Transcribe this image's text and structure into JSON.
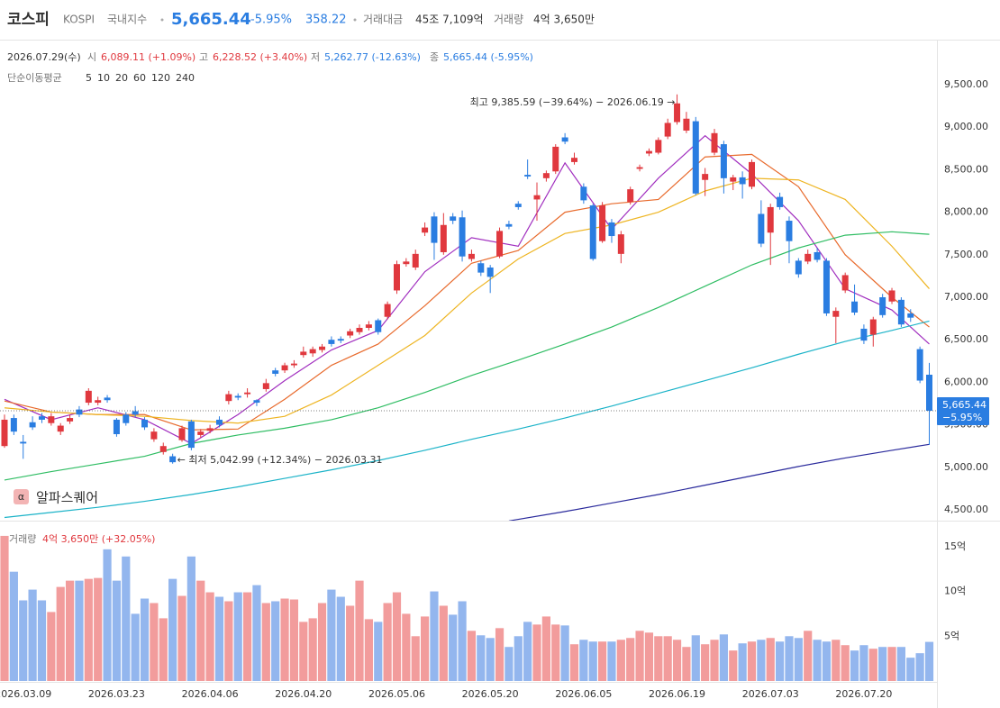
{
  "header": {
    "name": "코스피",
    "code": "KOSPI",
    "market": "국내지수",
    "price": "5,665.44",
    "change": "-5.95%",
    "change_abs": "358.22",
    "turnover_label": "거래대금",
    "turnover": "45조 7,109억",
    "volume_label": "거래량",
    "volume": "4억 3,650만"
  },
  "info": {
    "date": "2026.07.29(수)",
    "open_label": "시",
    "open": "6,089.11 (+1.09%)",
    "high_label": "고",
    "high": "6,228.52 (+3.40%)",
    "low_label": "저",
    "low": "5,262.77 (-12.63%)",
    "close_label": "종",
    "close": "5,665.44 (-5.95%)",
    "ma_label": "단순이동평균",
    "box_change": "−5.95%"
  },
  "watermark": "알파스퀘어",
  "chart_data": [
    {
      "type": "candlestick",
      "categories": [
        null,
        null,
        "2026.03.09",
        null,
        null,
        null,
        null,
        null,
        null,
        null,
        null,
        null,
        "2026.03.23",
        null,
        null,
        null,
        null,
        null,
        null,
        null,
        null,
        null,
        "2026.04.06",
        null,
        null,
        null,
        null,
        null,
        null,
        null,
        null,
        null,
        "2026.04.20",
        null,
        null,
        null,
        null,
        null,
        null,
        null,
        null,
        null,
        "2026.05.06",
        null,
        null,
        null,
        null,
        null,
        null,
        null,
        null,
        null,
        "2026.05.20",
        null,
        null,
        null,
        null,
        null,
        null,
        null,
        null,
        null,
        "2026.06.05",
        null,
        null,
        null,
        null,
        null,
        null,
        null,
        null,
        null,
        "2026.06.19",
        null,
        null,
        null,
        null,
        null,
        null,
        null,
        null,
        null,
        "2026.07.03",
        null,
        null,
        null,
        null,
        null,
        null,
        null,
        null,
        null,
        "2026.07.20",
        null,
        null,
        null,
        null,
        null,
        null,
        null
      ],
      "open": [
        5250,
        5580,
        5300,
        5530,
        5600,
        5520,
        5420,
        5540,
        5680,
        5760,
        5760,
        5820,
        5560,
        5620,
        5660,
        5560,
        5330,
        5180,
        5130,
        5320,
        5540,
        5380,
        5430,
        5560,
        5780,
        5840,
        5860,
        5790,
        5920,
        6140,
        6140,
        6200,
        6320,
        6340,
        6380,
        6500,
        6510,
        6550,
        6590,
        6640,
        6730,
        6770,
        7080,
        7390,
        7350,
        7760,
        7950,
        7530,
        7950,
        7940,
        7450,
        7400,
        7350,
        7480,
        7860,
        8100,
        8440,
        8150,
        8400,
        8480,
        8880,
        8590,
        8300,
        8080,
        7660,
        7880,
        7510,
        8120,
        8510,
        8690,
        8700,
        8890,
        9060,
        8960,
        9070,
        8380,
        8700,
        8800,
        8360,
        8410,
        8300,
        7980,
        7760,
        8180,
        7900,
        7430,
        7420,
        7530,
        7430,
        6770,
        7080,
        6950,
        6630,
        6560,
        7000,
        6950,
        6970,
        6810,
        6390,
        6089.11
      ],
      "high": [
        5620,
        5620,
        5380,
        5600,
        5640,
        5640,
        5520,
        5620,
        5720,
        5930,
        5830,
        5850,
        5580,
        5650,
        5720,
        5590,
        5460,
        5290,
        5160,
        5490,
        5560,
        5450,
        5500,
        5600,
        5900,
        5870,
        5930,
        5800,
        6040,
        6170,
        6230,
        6260,
        6420,
        6420,
        6450,
        6540,
        6540,
        6630,
        6680,
        6720,
        6750,
        6950,
        7430,
        7460,
        7560,
        7880,
        8000,
        7990,
        7990,
        8020,
        7560,
        7430,
        7380,
        7820,
        7900,
        8130,
        8620,
        8350,
        8490,
        8800,
        8930,
        8700,
        8340,
        8100,
        8120,
        7920,
        7780,
        8300,
        8560,
        8750,
        8880,
        9100,
        9385.59,
        9180,
        9120,
        8520,
        8980,
        8840,
        8440,
        8480,
        8620,
        8140,
        8100,
        8230,
        7950,
        7460,
        7560,
        7580,
        7460,
        6880,
        7290,
        7150,
        6680,
        6770,
        7040,
        7110,
        7000,
        6860,
        6420,
        6228.52
      ],
      "low": [
        5230,
        5380,
        5100,
        5440,
        5520,
        5490,
        5380,
        5510,
        5590,
        5730,
        5730,
        5760,
        5360,
        5490,
        5590,
        5440,
        5300,
        5150,
        5042.99,
        5300,
        5200,
        5350,
        5400,
        5470,
        5740,
        5790,
        5820,
        5720,
        5890,
        6070,
        6110,
        6170,
        6290,
        6300,
        6350,
        6420,
        6460,
        6520,
        6560,
        6610,
        6560,
        6740,
        7040,
        7360,
        7320,
        7720,
        7440,
        7500,
        7860,
        7420,
        7420,
        7250,
        7050,
        7460,
        7800,
        8030,
        8390,
        7900,
        8360,
        8450,
        8800,
        8560,
        8100,
        7430,
        7640,
        7640,
        7400,
        8090,
        8480,
        8660,
        8680,
        8860,
        9030,
        8930,
        8200,
        8190,
        8670,
        8220,
        8260,
        8160,
        8270,
        7590,
        7380,
        8030,
        7400,
        7230,
        7390,
        7410,
        6780,
        6460,
        7050,
        6790,
        6450,
        6420,
        6760,
        6920,
        6650,
        6710,
        5990,
        5262.77
      ],
      "close": [
        5560,
        5420,
        5280,
        5470,
        5560,
        5600,
        5490,
        5580,
        5620,
        5900,
        5790,
        5790,
        5390,
        5520,
        5620,
        5470,
        5420,
        5250,
        5060,
        5460,
        5230,
        5420,
        5460,
        5500,
        5860,
        5820,
        5880,
        5760,
        5990,
        6100,
        6200,
        6220,
        6360,
        6390,
        6420,
        6450,
        6490,
        6600,
        6640,
        6680,
        6590,
        6920,
        7390,
        7420,
        7510,
        7820,
        7640,
        7850,
        7900,
        7480,
        7510,
        7290,
        7240,
        7780,
        7830,
        8060,
        8420,
        8200,
        8460,
        8770,
        8830,
        8640,
        8140,
        7450,
        8080,
        7720,
        7740,
        8270,
        8530,
        8720,
        8850,
        9050,
        9280,
        9100,
        8220,
        8450,
        8930,
        8400,
        8410,
        8330,
        8590,
        7630,
        8060,
        8060,
        7660,
        7270,
        7510,
        7440,
        6810,
        6840,
        7260,
        6820,
        6490,
        6740,
        6790,
        7080,
        6680,
        6760,
        6020,
        5665.44
      ],
      "up_color": "#e0383e",
      "down_color": "#2a7de1",
      "ylim": [
        4373,
        10072
      ],
      "yticks": [
        {
          "value": 4500,
          "label": "4,500.00"
        },
        {
          "value": 5000,
          "label": "5,000.00"
        },
        {
          "value": 5500,
          "label": "5,500.00"
        },
        {
          "value": 6000,
          "label": "6,000.00"
        },
        {
          "value": 6500,
          "label": "6,500.00"
        },
        {
          "value": 7000,
          "label": "7,000.00"
        },
        {
          "value": 7500,
          "label": "7,500.00"
        },
        {
          "value": 8000,
          "label": "8,000.00"
        },
        {
          "value": 8500,
          "label": "8,500.00"
        },
        {
          "value": 9000,
          "label": "9,000.00"
        },
        {
          "value": 9500,
          "label": "9,500.00"
        }
      ],
      "annotations": [
        {
          "text": "최고 9,385.59 (−39.64%) − 2026.06.19 →",
          "color": "#e0383e"
        },
        {
          "text": "← 최저 5,042.99 (+12.34%) − 2026.03.31",
          "color": "#2a7de1"
        }
      ],
      "series": [
        {
          "name": "5",
          "color": "#a12fbf",
          "x": [
            0,
            5,
            10,
            15,
            20,
            25,
            30,
            35,
            40,
            45,
            50,
            55,
            60,
            65,
            70,
            75,
            80,
            85,
            90,
            95,
            99
          ],
          "values": [
            5800,
            5560,
            5700,
            5560,
            5280,
            5620,
            6020,
            6380,
            6610,
            7300,
            7700,
            7600,
            8580,
            7800,
            8400,
            8900,
            8450,
            7900,
            7100,
            6850,
            6450
          ]
        },
        {
          "name": "10",
          "color": "#e86a2c",
          "x": [
            0,
            5,
            10,
            15,
            20,
            25,
            30,
            35,
            40,
            45,
            50,
            55,
            60,
            65,
            70,
            75,
            80,
            85,
            90,
            95,
            99
          ],
          "values": [
            5780,
            5650,
            5620,
            5620,
            5440,
            5450,
            5800,
            6200,
            6450,
            6900,
            7400,
            7550,
            8000,
            8100,
            8150,
            8650,
            8680,
            8300,
            7500,
            7000,
            6650
          ]
        },
        {
          "name": "20",
          "color": "#eeb523",
          "x": [
            0,
            5,
            10,
            15,
            20,
            25,
            30,
            35,
            40,
            45,
            50,
            55,
            60,
            65,
            70,
            75,
            80,
            85,
            90,
            95,
            99
          ],
          "values": [
            5700,
            5650,
            5620,
            5600,
            5550,
            5520,
            5600,
            5850,
            6200,
            6550,
            7050,
            7450,
            7750,
            7850,
            8000,
            8250,
            8400,
            8380,
            8150,
            7600,
            7100
          ]
        },
        {
          "name": "60",
          "color": "#2fbd63",
          "x": [
            0,
            5,
            10,
            15,
            20,
            25,
            30,
            35,
            40,
            45,
            50,
            55,
            60,
            65,
            70,
            75,
            80,
            85,
            90,
            95,
            99
          ],
          "values": [
            4850,
            4950,
            5040,
            5130,
            5280,
            5380,
            5460,
            5560,
            5700,
            5880,
            6080,
            6260,
            6450,
            6650,
            6880,
            7130,
            7380,
            7580,
            7730,
            7770,
            7740
          ]
        },
        {
          "name": "120",
          "color": "#1bb3c8",
          "x": [
            0,
            5,
            10,
            15,
            20,
            25,
            30,
            35,
            40,
            45,
            50,
            55,
            60,
            65,
            70,
            75,
            80,
            85,
            90,
            95,
            99
          ],
          "values": [
            4410,
            4470,
            4530,
            4600,
            4680,
            4770,
            4870,
            4970,
            5080,
            5200,
            5330,
            5450,
            5580,
            5720,
            5870,
            6020,
            6170,
            6330,
            6480,
            6610,
            6720
          ]
        },
        {
          "name": "240",
          "color": "#2a2a9c",
          "x": [
            54,
            60,
            65,
            70,
            75,
            80,
            85,
            90,
            95,
            99
          ],
          "values": [
            4370,
            4480,
            4580,
            4680,
            4790,
            4900,
            5010,
            5110,
            5200,
            5270
          ]
        }
      ]
    },
    {
      "type": "bar",
      "title": "거래량",
      "value_label": "4억 3,650만 (+32.05%)",
      "values": [
        16.2,
        12.2,
        9.0,
        10.2,
        9.0,
        7.7,
        10.5,
        11.2,
        11.2,
        11.4,
        11.5,
        14.7,
        11.2,
        13.9,
        7.5,
        9.2,
        8.7,
        7.0,
        11.4,
        9.5,
        13.9,
        11.2,
        9.9,
        9.4,
        8.9,
        9.9,
        9.9,
        10.7,
        8.7,
        8.9,
        9.2,
        9.1,
        6.6,
        7.0,
        8.7,
        10.2,
        9.4,
        8.4,
        11.2,
        6.9,
        6.6,
        8.7,
        9.9,
        7.5,
        5.0,
        7.2,
        10.0,
        8.4,
        7.4,
        8.9,
        5.6,
        5.1,
        4.8,
        5.9,
        3.8,
        5.0,
        6.6,
        6.3,
        7.2,
        6.3,
        6.2,
        4.1,
        4.6,
        4.4,
        4.4,
        4.4,
        4.6,
        4.8,
        5.6,
        5.4,
        5.0,
        5.0,
        4.6,
        3.8,
        5.1,
        4.1,
        4.6,
        5.2,
        3.4,
        4.2,
        4.4,
        4.6,
        4.8,
        4.4,
        5.0,
        4.8,
        5.6,
        4.6,
        4.4,
        4.6,
        4.0,
        3.4,
        4.0,
        3.6,
        3.8,
        3.8,
        3.8,
        2.6,
        3.1,
        4.365
      ],
      "up_color": "#f29c9c",
      "down_color": "#93b6ee",
      "ylim": [
        0,
        17.7
      ],
      "yticks": [
        {
          "value": 5,
          "label": "5억"
        },
        {
          "value": 10,
          "label": "10억"
        },
        {
          "value": 15,
          "label": "15억"
        }
      ]
    }
  ]
}
